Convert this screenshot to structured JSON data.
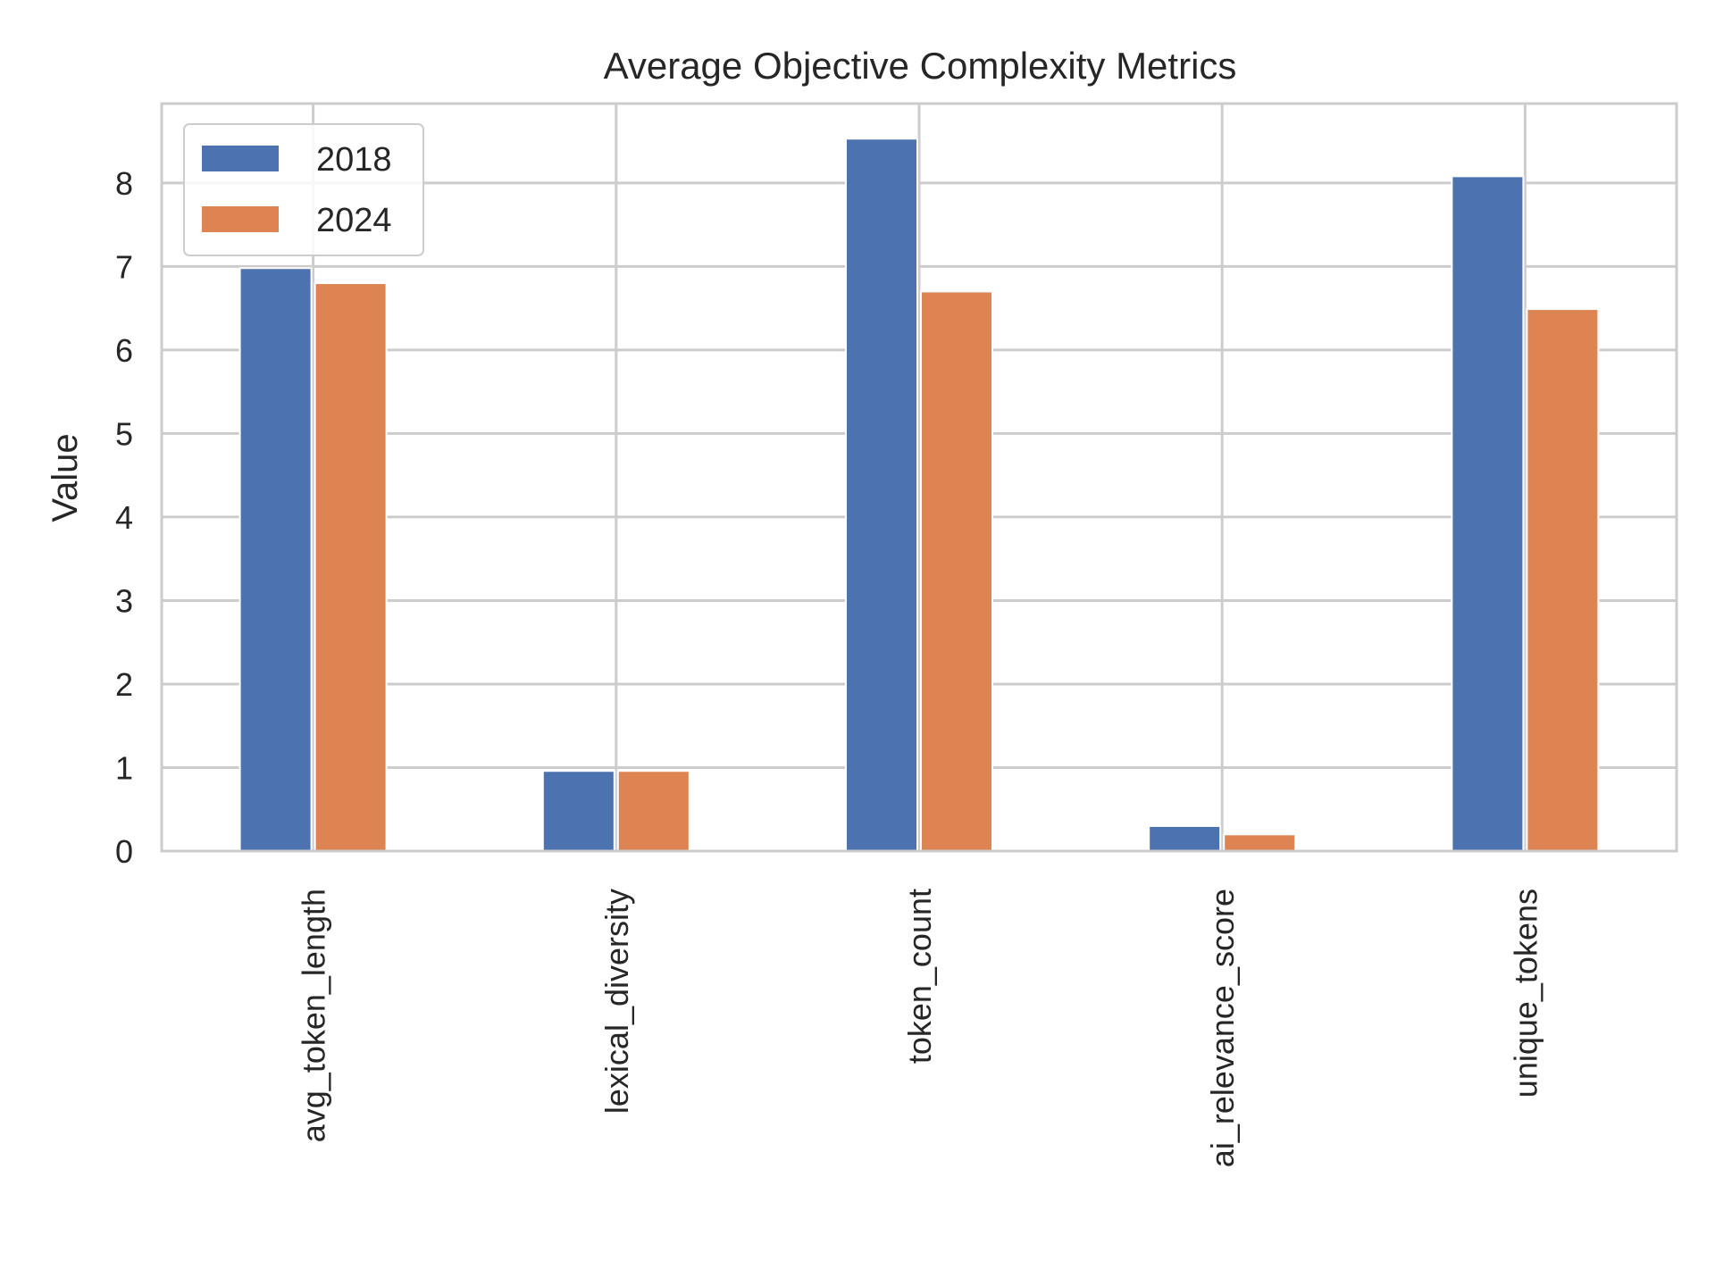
{
  "chart_data": {
    "type": "bar",
    "title": "Average Objective Complexity Metrics",
    "xlabel": "",
    "ylabel": "Value",
    "categories": [
      "avg_token_length",
      "lexical_diversity",
      "token_count",
      "ai_relevance_score",
      "unique_tokens"
    ],
    "series": [
      {
        "name": "2018",
        "color": "#4c72b0",
        "values": [
          6.98,
          0.96,
          8.53,
          0.3,
          8.08
        ]
      },
      {
        "name": "2024",
        "color": "#dd8452",
        "values": [
          6.8,
          0.96,
          6.7,
          0.2,
          6.49
        ]
      }
    ],
    "ylim": [
      0,
      8.95
    ],
    "yticks": [
      0,
      1,
      2,
      3,
      4,
      5,
      6,
      7,
      8
    ],
    "grid": true,
    "legend_position": "top-left"
  }
}
